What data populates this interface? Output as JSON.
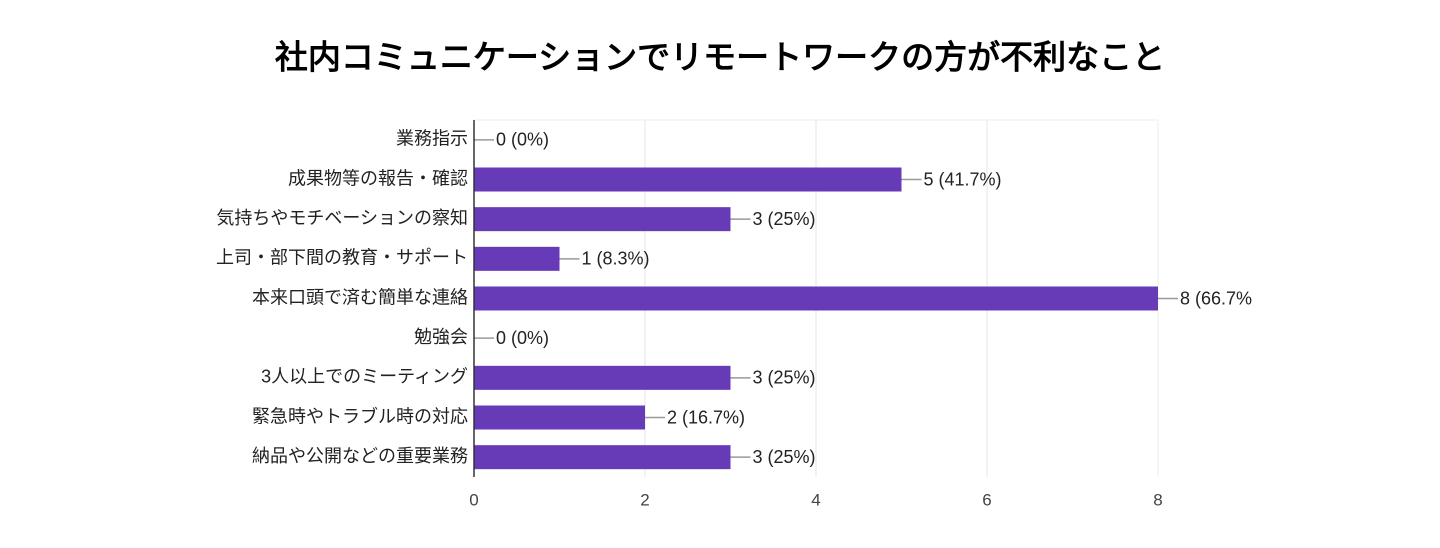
{
  "chart_data": {
    "type": "bar",
    "orientation": "horizontal",
    "title": "社内コミュニケーションでリモートワークの方が不利なこと",
    "categories": [
      "業務指示",
      "成果物等の報告・確認",
      "気持ちやモチベーションの察知",
      "上司・部下間の教育・サポート",
      "本来口頭で済む簡単な連絡",
      "勉強会",
      "3人以上でのミーティング",
      "緊急時やトラブル時の対応",
      "納品や公開などの重要業務"
    ],
    "values": [
      0,
      5,
      3,
      1,
      8,
      0,
      3,
      2,
      3
    ],
    "value_labels": [
      "0 (0%)",
      "5 (41.7%)",
      "3 (25%)",
      "1 (8.3%)",
      "8 (66.7%",
      "0 (0%)",
      "3 (25%)",
      "2 (16.7%)",
      "3 (25%)"
    ],
    "color": "#673ab7",
    "xlim": [
      0,
      8
    ],
    "xticks": [
      0,
      2,
      4,
      6,
      8
    ],
    "grid": true
  }
}
